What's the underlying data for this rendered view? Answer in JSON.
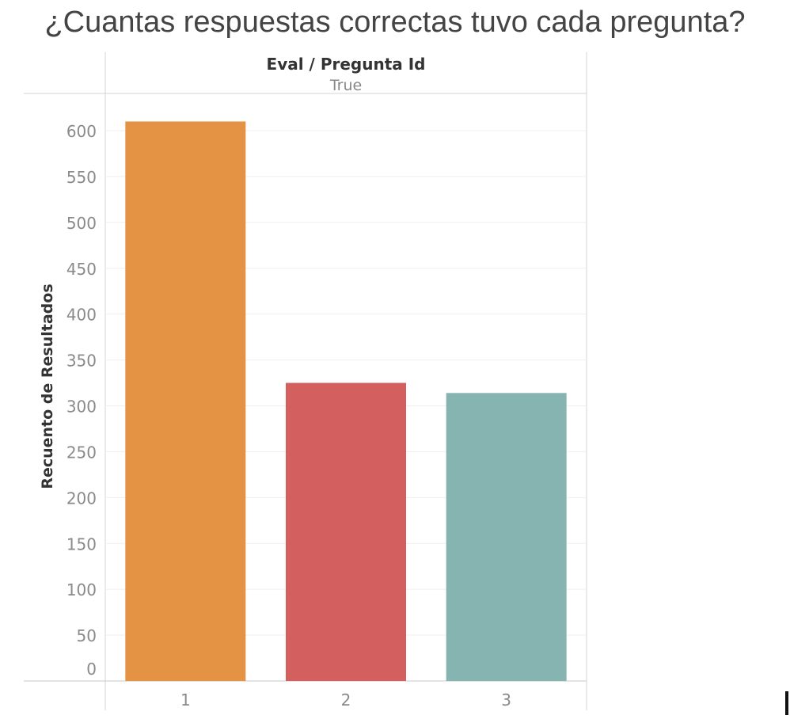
{
  "chart_data": {
    "type": "bar",
    "title": "¿Cuantas respuestas correctas tuvo cada pregunta?",
    "header_title": "Eval / Pregunta Id",
    "header_value": "True",
    "ylabel": "Recuento de Resultados",
    "xlabel": "",
    "categories": [
      "1",
      "2",
      "3"
    ],
    "values": [
      610,
      325,
      314
    ],
    "colors": [
      "#E39343",
      "#D35F5F",
      "#86B4B1"
    ],
    "ylim": [
      0,
      650
    ],
    "yticks": [
      0,
      50,
      100,
      150,
      200,
      250,
      300,
      350,
      400,
      450,
      500,
      550,
      600
    ],
    "grid": true,
    "legend": "none"
  }
}
